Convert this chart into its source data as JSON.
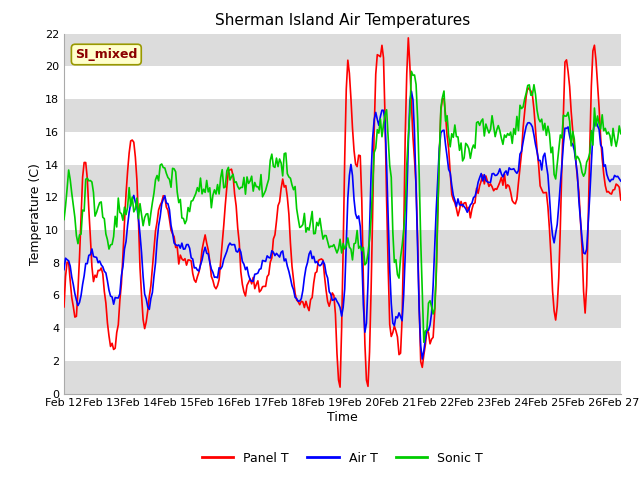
{
  "title": "Sherman Island Air Temperatures",
  "xlabel": "Time",
  "ylabel": "Temperature (C)",
  "ylim": [
    0,
    22
  ],
  "yticks": [
    0,
    2,
    4,
    6,
    8,
    10,
    12,
    14,
    16,
    18,
    20,
    22
  ],
  "xtick_labels": [
    "Feb 12",
    "Feb 13",
    "Feb 14",
    "Feb 15",
    "Feb 16",
    "Feb 17",
    "Feb 18",
    "Feb 19",
    "Feb 20",
    "Feb 21",
    "Feb 22",
    "Feb 23",
    "Feb 24",
    "Feb 25",
    "Feb 26",
    "Feb 27"
  ],
  "annotation_text": "SI_mixed",
  "annotation_color": "#8B0000",
  "annotation_bg": "#FFFFCC",
  "panel_color": "#FF0000",
  "air_color": "#0000FF",
  "sonic_color": "#00CC00",
  "line_width": 1.2,
  "plot_bg": "#FFFFFF",
  "band_color": "#DCDCDC",
  "legend_labels": [
    "Panel T",
    "Air T",
    "Sonic T"
  ],
  "title_fontsize": 11,
  "axis_label_fontsize": 9,
  "tick_fontsize": 8
}
